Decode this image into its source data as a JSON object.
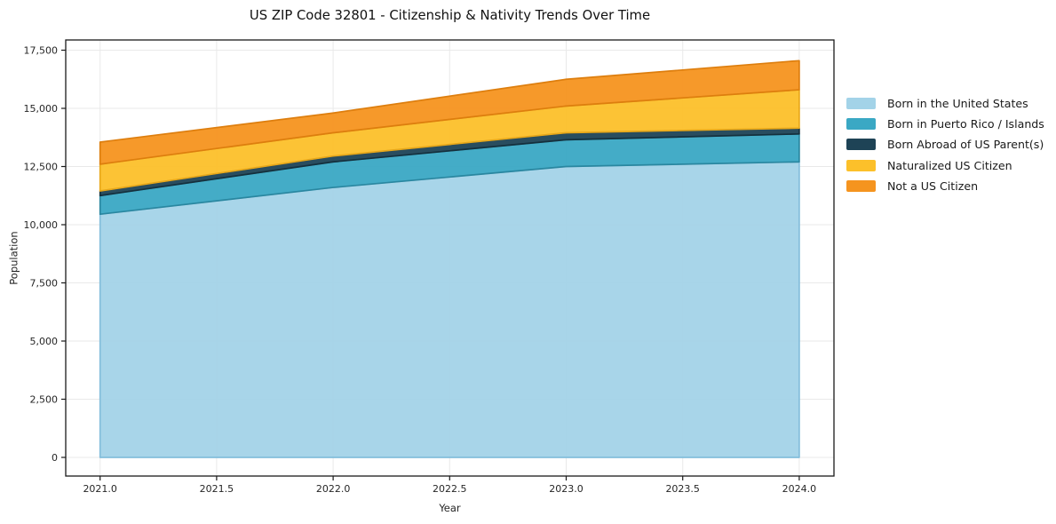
{
  "title": "US ZIP Code 32801 - Citizenship & Nativity Trends Over Time",
  "chart_data": {
    "type": "area",
    "stacked": true,
    "title": "US ZIP Code 32801 - Citizenship & Nativity Trends Over Time",
    "xlabel": "Year",
    "ylabel": "Population",
    "x": [
      2021,
      2022,
      2023,
      2024
    ],
    "series": [
      {
        "name": "Born in the United States",
        "color": "#A3D3E8",
        "edge": "#84BEDB",
        "values": [
          10450,
          11600,
          12500,
          12700
        ]
      },
      {
        "name": "Born in Puerto Rico / Islands",
        "color": "#3AA8C4",
        "edge": "#2A87A0",
        "values": [
          800,
          1100,
          1150,
          1200
        ]
      },
      {
        "name": "Born Abroad of US Parent(s)",
        "color": "#1E4356",
        "edge": "#15303D",
        "values": [
          200,
          250,
          300,
          250
        ]
      },
      {
        "name": "Naturalized US Citizen",
        "color": "#FCC02A",
        "edge": "#E8A81A",
        "values": [
          1150,
          1000,
          1150,
          1650
        ]
      },
      {
        "name": "Not a US Citizen",
        "color": "#F5941F",
        "edge": "#DD7E0E",
        "values": [
          950,
          850,
          1150,
          1250
        ]
      }
    ],
    "stacked_totals": [
      13550,
      14800,
      16250,
      17050
    ],
    "ylim": [
      0,
      17500
    ],
    "yticks": [
      0,
      2500,
      5000,
      7500,
      10000,
      12500,
      15000,
      17500
    ],
    "ytick_labels": [
      "0",
      "2,500",
      "5,000",
      "7,500",
      "10,000",
      "12,500",
      "15,000",
      "17,500"
    ],
    "xticks": [
      2021.0,
      2021.5,
      2022.0,
      2022.5,
      2023.0,
      2023.5,
      2024.0
    ],
    "xtick_labels": [
      "2021.0",
      "2021.5",
      "2022.0",
      "2022.5",
      "2023.0",
      "2023.5",
      "2024.0"
    ],
    "grid": true,
    "legend_position": "right-outside",
    "grid_color": "#E9E9E9",
    "spine_color": "#1A1A1A",
    "text_color": "#262626"
  }
}
